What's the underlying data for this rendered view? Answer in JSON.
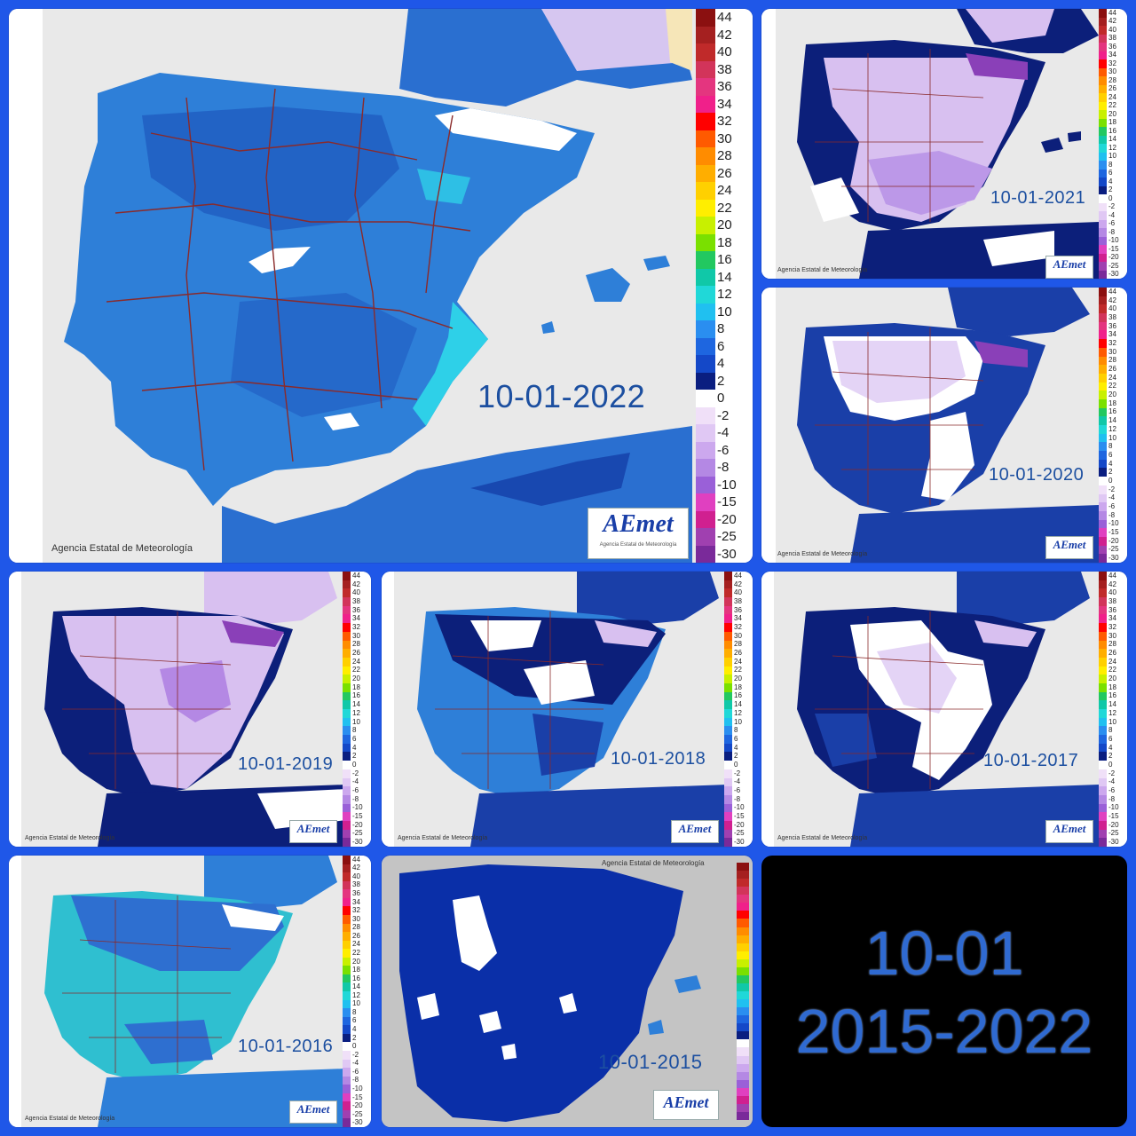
{
  "title": {
    "line1": "10-01",
    "line2": "2015-2022"
  },
  "credit": "Agencia Estatal de Meteorología",
  "logo": {
    "text": "AEmet",
    "sub": "Agencia Estatal de Meteorología"
  },
  "scale_labels": [
    "44",
    "42",
    "40",
    "38",
    "36",
    "34",
    "32",
    "30",
    "28",
    "26",
    "24",
    "22",
    "20",
    "18",
    "16",
    "14",
    "12",
    "10",
    "8",
    "6",
    "4",
    "2",
    "0",
    "-2",
    "-4",
    "-6",
    "-8",
    "-10",
    "-15",
    "-20",
    "-25",
    "-30"
  ],
  "scale_colors": [
    "#8b1010",
    "#a52020",
    "#c02a2a",
    "#d2345a",
    "#e4357f",
    "#f0208a",
    "#ff0000",
    "#ff5a00",
    "#ff8c00",
    "#ffae00",
    "#ffd000",
    "#ffee00",
    "#c8f000",
    "#7ae000",
    "#22c860",
    "#10c8a8",
    "#20d8d8",
    "#20c0f0",
    "#2a8ef0",
    "#1e66e0",
    "#1448c8",
    "#0a1e80",
    "#ffffff",
    "#f0e0f8",
    "#e0c8f4",
    "#cca8ee",
    "#b488e4",
    "#9a60d8",
    "#e040c0",
    "#d02090",
    "#a040b0",
    "#7a2a9a"
  ],
  "colors": {
    "sea": "#e9e9e9",
    "frame": "#1f57e8",
    "date_text": "#1c4fa0",
    "land_2022": "#2e7fd8",
    "land_2016": "#2fbfd0",
    "land_2015": "#0a2fa8",
    "cold_purple": "#d8c0f0",
    "frost_white": "#ffffff",
    "deep_navy": "#0c1f7a",
    "border_lines": "#8a2a2a"
  },
  "maps": [
    {
      "id": "2022",
      "date": "10-01-2022",
      "dominant": "blue"
    },
    {
      "id": "2021",
      "date": "10-01-2021",
      "dominant": "purple"
    },
    {
      "id": "2020",
      "date": "10-01-2020",
      "dominant": "purple"
    },
    {
      "id": "2019",
      "date": "10-01-2019",
      "dominant": "purple"
    },
    {
      "id": "2018",
      "date": "10-01-2018",
      "dominant": "navy"
    },
    {
      "id": "2017",
      "date": "10-01-2017",
      "dominant": "navy"
    },
    {
      "id": "2016",
      "date": "10-01-2016",
      "dominant": "cyan"
    },
    {
      "id": "2015",
      "date": "10-01-2015",
      "dominant": "navy"
    }
  ]
}
